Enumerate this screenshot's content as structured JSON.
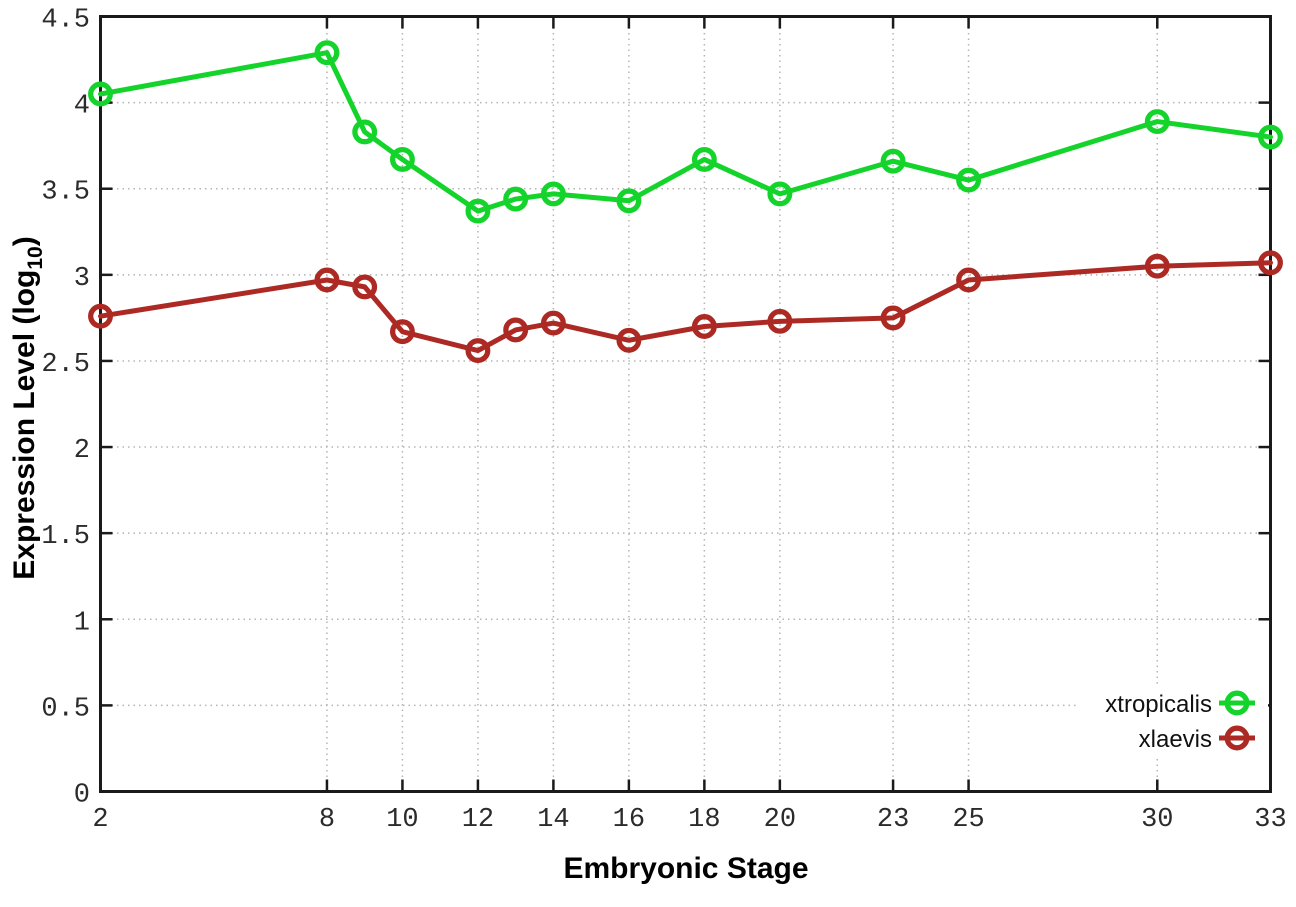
{
  "page": {
    "background": "#ffffff"
  },
  "chart_data": {
    "type": "line",
    "title": "",
    "xlabel": "Embryonic Stage",
    "ylabel": {
      "pre": "Expression Level (log",
      "sub": "10",
      "post": ")"
    },
    "xlim": [
      2,
      33
    ],
    "ylim": [
      0,
      4.5
    ],
    "xticks": [
      2,
      8,
      10,
      12,
      14,
      16,
      18,
      20,
      23,
      25,
      30,
      33
    ],
    "xtick_labels": [
      "2",
      "8",
      "10",
      "12",
      "14",
      "16",
      "18",
      "20",
      "23",
      "25",
      "30",
      "33"
    ],
    "yticks": [
      0,
      0.5,
      1,
      1.5,
      2,
      2.5,
      3,
      3.5,
      4,
      4.5
    ],
    "ytick_labels": [
      "0",
      "0.5",
      "1",
      "1.5",
      "2",
      "2.5",
      "3",
      "3.5",
      "4",
      "4.5"
    ],
    "grid": true,
    "legend_position": "bottom-right-inside",
    "x": [
      2,
      8,
      9,
      10,
      12,
      13,
      14,
      16,
      18,
      20,
      23,
      25,
      30,
      33
    ],
    "series": [
      {
        "name": "xtropicalis",
        "color": "#14d42c",
        "values": [
          4.05,
          4.29,
          3.83,
          3.67,
          3.37,
          3.44,
          3.47,
          3.43,
          3.67,
          3.47,
          3.66,
          3.55,
          3.89,
          3.8
        ]
      },
      {
        "name": "xlaevis",
        "color": "#ad2a24",
        "values": [
          2.76,
          2.97,
          2.93,
          2.67,
          2.56,
          2.68,
          2.72,
          2.62,
          2.7,
          2.73,
          2.75,
          2.97,
          3.05,
          3.07
        ]
      }
    ],
    "style": {
      "axis_color": "#1a1a1a",
      "grid_color": "#b5b5b5",
      "tick_label_color": "#2b2b2b",
      "marker": "open-circle"
    }
  }
}
